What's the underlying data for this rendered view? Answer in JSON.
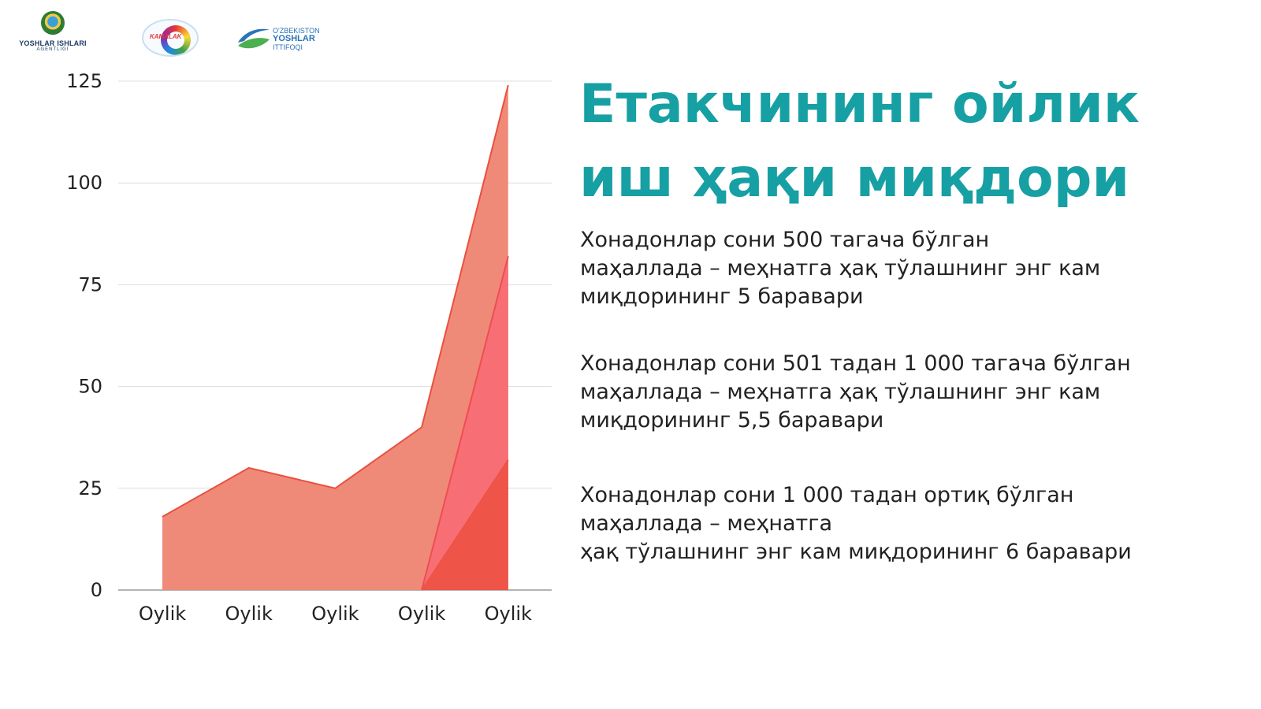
{
  "logos": {
    "agency_line1": "YOSHLAR ISHLARI",
    "agency_line2": "AGENTLIGI",
    "kamalak": "KAMALAK",
    "union_line1": "O'ZBEKISTON",
    "union_line2": "YOSHLAR",
    "union_line3": "ITTIFOQI",
    "colors": {
      "navy": "#1e3a66",
      "blue": "#2a73b8",
      "green": "#4caf50"
    }
  },
  "title": "Етакчининг ойлик иш ҳақи миқдори",
  "paragraphs": [
    "Хонадонлар сони 500 тагача бўлган\nмаҳаллада – меҳнатга ҳақ тўлашнинг энг кам\nмиқдорининг 5 баравари",
    "Хонадонлар сони 501 тадан 1 000 тагача бўлган\nмаҳаллада – меҳнатга ҳақ тўлашнинг энг кам\nмиқдорининг 5,5 баравари",
    "Хонадонлар сони 1 000 тадан ортиқ бўлган\nмаҳаллада – меҳнатга\n ҳақ тўлашнинг энг кам миқдорининг 6 баравари"
  ],
  "colors": {
    "title": "#17a0a4",
    "text": "#222222"
  },
  "chart_data": {
    "type": "area",
    "categories": [
      "Oylik",
      "Oylik",
      "Oylik",
      "Oylik",
      "Oylik"
    ],
    "ylim": [
      0,
      125
    ],
    "yticks": [
      "0",
      "25",
      "50",
      "75",
      "100",
      "125"
    ],
    "grid": true,
    "series": [
      {
        "values": [
          18,
          30,
          25,
          40,
          124
        ],
        "color": "#f08a78",
        "line": "#e8503f"
      },
      {
        "values": [
          0,
          0,
          0,
          0,
          82
        ],
        "color": "#f76f75",
        "line": "#ef4d52"
      },
      {
        "values": [
          0,
          0,
          0,
          0,
          32
        ],
        "color": "#ee5447",
        "line": "#ee5447"
      }
    ]
  }
}
